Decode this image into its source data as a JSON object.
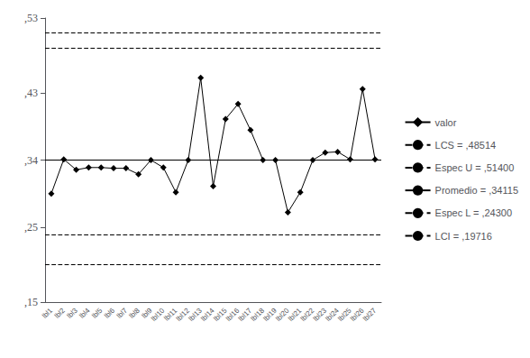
{
  "chart_data": {
    "type": "line",
    "categories": [
      "lbl1",
      "lbl2",
      "lbl3",
      "lbl4",
      "lbl5",
      "lbl6",
      "lbl7",
      "lbl8",
      "lbl9",
      "lbl10",
      "lbl11",
      "lbl12",
      "lbl13",
      "lbl14",
      "lbl15",
      "lbl16",
      "lbl17",
      "lbl18",
      "lbl19",
      "lbl20",
      "lbl21",
      "lbl22",
      "lbl23",
      "lbl24",
      "lbl25",
      "lbl26",
      "lbl27"
    ],
    "series": [
      {
        "name": "valor",
        "color": "black",
        "marker": "diamond",
        "values": [
          0.295,
          0.341,
          0.327,
          0.33,
          0.33,
          0.329,
          0.329,
          0.321,
          0.34,
          0.33,
          0.297,
          0.34,
          0.45,
          0.305,
          0.395,
          0.415,
          0.38,
          0.34,
          0.34,
          0.27,
          0.297,
          0.34,
          0.35,
          0.351,
          0.341,
          0.435,
          0.341
        ]
      }
    ],
    "reference_lines": [
      {
        "label": "LCS = ,48514",
        "value": 0.48514,
        "color": "black",
        "line_style": "dashed"
      },
      {
        "label": "Espec U = ,51400",
        "value": 0.514,
        "color": "black",
        "line_style": "dashed"
      },
      {
        "label": "Promedio = ,34115",
        "value": 0.34115,
        "color": "black",
        "line_style": "solid"
      },
      {
        "label": "Espec L = ,24300",
        "value": 0.243,
        "color": "black",
        "line_style": "dashed"
      },
      {
        "label": "LCI = ,19716",
        "value": 0.19716,
        "color": "black",
        "line_style": "dashed"
      }
    ],
    "ylim": [
      0.15,
      0.53
    ],
    "yticks": [
      {
        "value": 0.15,
        "label": ",15"
      },
      {
        "value": 0.25,
        "label": ",25"
      },
      {
        "value": 0.34,
        "label": ",34"
      },
      {
        "value": 0.43,
        "label": ",43"
      },
      {
        "value": 0.53,
        "label": ",53"
      }
    ],
    "grid": false,
    "legend": "right"
  }
}
